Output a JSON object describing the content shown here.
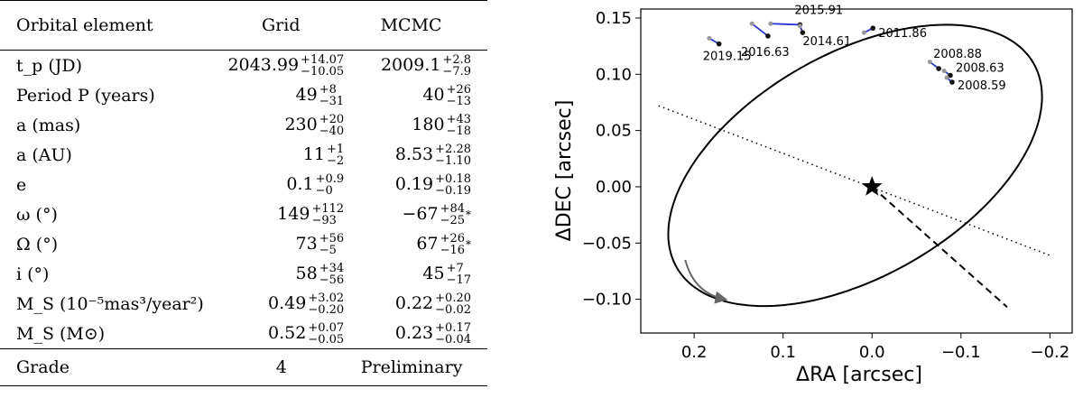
{
  "table": {
    "headers": [
      "Orbital element",
      "Grid",
      "MCMC"
    ],
    "rows": [
      {
        "label": "t_p (JD)",
        "grid": {
          "v": "2043.99",
          "up": "+14.07",
          "dn": "−10.05"
        },
        "mcmc": {
          "v": "2009.1",
          "up": "+2.8",
          "dn": "−7.9"
        }
      },
      {
        "label": "Period P (years)",
        "grid": {
          "v": "49",
          "up": "+8",
          "dn": "−31"
        },
        "mcmc": {
          "v": "40",
          "up": "+26",
          "dn": "−13"
        }
      },
      {
        "label": "a (mas)",
        "grid": {
          "v": "230",
          "up": "+20",
          "dn": "−40"
        },
        "mcmc": {
          "v": "180",
          "up": "+43",
          "dn": "−18"
        }
      },
      {
        "label": "a (AU)",
        "grid": {
          "v": "11",
          "up": "+1",
          "dn": "−2"
        },
        "mcmc": {
          "v": "8.53",
          "up": "+2.28",
          "dn": "−1.10"
        }
      },
      {
        "label": "e",
        "grid": {
          "v": "0.1",
          "up": "+0.9",
          "dn": "−0"
        },
        "mcmc": {
          "v": "0.19",
          "up": "+0.18",
          "dn": "−0.19"
        }
      },
      {
        "label": "ω (°)",
        "grid": {
          "v": "149",
          "up": "+112",
          "dn": "−93"
        },
        "mcmc": {
          "v": "−67",
          "up": "+84",
          "dn": "−25",
          "star": "*"
        }
      },
      {
        "label": "Ω (°)",
        "grid": {
          "v": "73",
          "up": "+56",
          "dn": "−5"
        },
        "mcmc": {
          "v": "67",
          "up": "+26",
          "dn": "−16",
          "star": "*"
        }
      },
      {
        "label": "i (°)",
        "grid": {
          "v": "58",
          "up": "+34",
          "dn": "−56"
        },
        "mcmc": {
          "v": "45",
          "up": "+7",
          "dn": "−17"
        }
      },
      {
        "label": "M_S (10⁻⁵mas³/year²)",
        "grid": {
          "v": "0.49",
          "up": "+3.02",
          "dn": "−0.20"
        },
        "mcmc": {
          "v": "0.22",
          "up": "+0.20",
          "dn": "−0.02"
        }
      },
      {
        "label": "M_S (M⊙)",
        "grid": {
          "v": "0.52",
          "up": "+0.07",
          "dn": "−0.05"
        },
        "mcmc": {
          "v": "0.23",
          "up": "+0.17",
          "dn": "−0.04"
        }
      }
    ],
    "grade": {
      "label": "Grade",
      "grid": "4",
      "mcmc": "Preliminary"
    }
  },
  "chart_data": {
    "type": "scatter",
    "title": "",
    "xlabel": "ΔRA [arcsec]",
    "ylabel": "ΔDEC [arcsec]",
    "xlim": [
      0.26,
      -0.225
    ],
    "ylim": [
      -0.13,
      0.158
    ],
    "xticks": [
      0.2,
      0.1,
      0.0,
      -0.1,
      -0.2
    ],
    "xtick_labels": [
      "0.2",
      "0.1",
      "0.0",
      "−0.1",
      "−0.2"
    ],
    "yticks": [
      0.15,
      0.1,
      0.05,
      0.0,
      -0.05,
      -0.1
    ],
    "ytick_labels": [
      "0.15",
      "0.10",
      "0.05",
      "0.00",
      "−0.05",
      "−0.10"
    ],
    "star": {
      "x": 0.0,
      "y": 0.0
    },
    "ellipse": {
      "cx": 0.019,
      "cy": 0.019,
      "rx": 0.2215,
      "ry": 0.1035,
      "tilt_deg": -21
    },
    "line_of_nodes": {
      "x1": 0.24,
      "y1": 0.072,
      "x2": -0.2,
      "y2": -0.061
    },
    "periastron_line": {
      "x1": 0.0,
      "y1": 0.0,
      "x2": -0.152,
      "y2": -0.107
    },
    "epochs": [
      {
        "label": "2019.15",
        "x": 0.172,
        "y": 0.127,
        "ox": 0.183,
        "oy": 0.132
      },
      {
        "label": "2016.63",
        "x": 0.117,
        "y": 0.134,
        "ox": 0.135,
        "oy": 0.145
      },
      {
        "label": "2015.91",
        "x": 0.081,
        "y": 0.144,
        "ox": 0.114,
        "oy": 0.145
      },
      {
        "label": "2014.61",
        "x": 0.078,
        "y": 0.137,
        "ox": 0.081,
        "oy": 0.143
      },
      {
        "label": "2011.86",
        "x": -0.001,
        "y": 0.141,
        "ox": 0.009,
        "oy": 0.137
      },
      {
        "label": "2008.88",
        "x": -0.075,
        "y": 0.105,
        "ox": -0.065,
        "oy": 0.111
      },
      {
        "label": "2008.63",
        "x": -0.088,
        "y": 0.099,
        "ox": -0.081,
        "oy": 0.103
      },
      {
        "label": "2008.59",
        "x": -0.09,
        "y": 0.093,
        "ox": -0.084,
        "oy": 0.097
      }
    ],
    "colors": {
      "orbit": "#000000",
      "residual": "#2b36d9",
      "arrow": "#666666"
    }
  }
}
